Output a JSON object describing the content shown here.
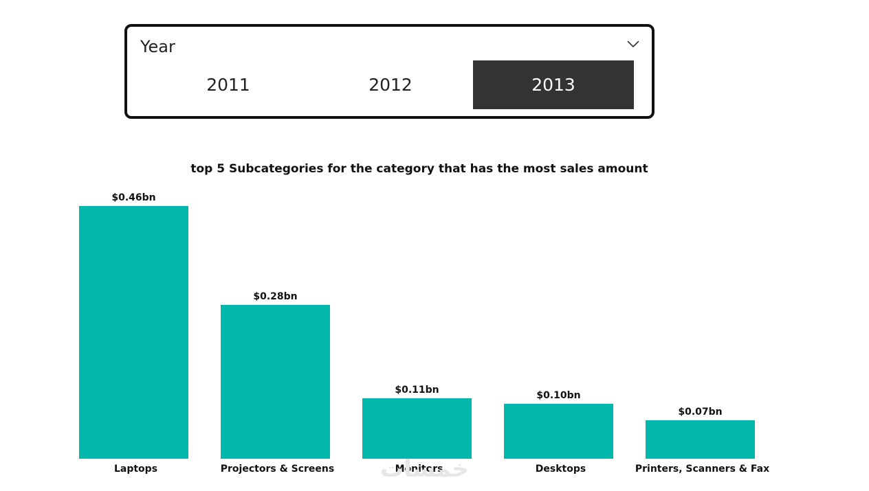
{
  "slicer": {
    "title": "Year",
    "options": [
      "2011",
      "2012",
      "2013"
    ],
    "selected": "2013"
  },
  "chart_title": "top 5 Subcategories for the category that has the most sales amount",
  "chart_data": {
    "type": "bar",
    "title": "top 5 Subcategories for the category that has the most sales amount",
    "categories": [
      "Laptops",
      "Projectors & Screens",
      "Monitors",
      "Desktops",
      "Printers, Scanners & Fax"
    ],
    "values": [
      0.46,
      0.28,
      0.11,
      0.1,
      0.07
    ],
    "data_labels": [
      "$0.46bn",
      "$0.28bn",
      "$0.11bn",
      "$0.10bn",
      "$0.07bn"
    ],
    "unit": "bn",
    "color": "#01B8AA",
    "ylim": [
      0,
      0.46
    ],
    "grid": false,
    "legend": "none"
  },
  "watermark": "خمسات"
}
